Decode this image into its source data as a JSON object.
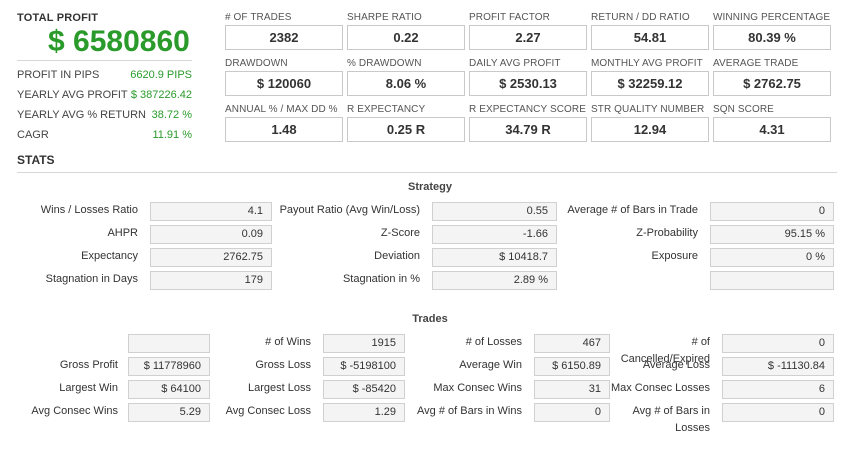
{
  "summary": {
    "total_profit_label": "TOTAL PROFIT",
    "total_profit_value": "$ 6580860",
    "rows": [
      {
        "label": "PROFIT IN PIPS",
        "value": "6620.9 PIPS"
      },
      {
        "label": "YEARLY AVG PROFIT",
        "value": "$ 387226.42"
      },
      {
        "label": "YEARLY AVG % RETURN",
        "value": "38.72 %"
      },
      {
        "label": "CAGR",
        "value": "11.91 %"
      }
    ]
  },
  "kpis": [
    {
      "label": "# OF TRADES",
      "value": "2382"
    },
    {
      "label": "SHARPE RATIO",
      "value": "0.22"
    },
    {
      "label": "PROFIT FACTOR",
      "value": "2.27"
    },
    {
      "label": "RETURN / DD RATIO",
      "value": "54.81"
    },
    {
      "label": "WINNING PERCENTAGE",
      "value": "80.39 %"
    },
    {
      "label": "DRAWDOWN",
      "value": "$ 120060"
    },
    {
      "label": "% DRAWDOWN",
      "value": "8.06 %"
    },
    {
      "label": "DAILY AVG PROFIT",
      "value": "$ 2530.13"
    },
    {
      "label": "MONTHLY AVG PROFIT",
      "value": "$ 32259.12"
    },
    {
      "label": "AVERAGE TRADE",
      "value": "$ 2762.75"
    },
    {
      "label": "ANNUAL % / MAX DD %",
      "value": "1.48"
    },
    {
      "label": "R EXPECTANCY",
      "value": "0.25 R"
    },
    {
      "label": "R EXPECTANCY SCORE",
      "value": "34.79 R"
    },
    {
      "label": "STR QUALITY NUMBER",
      "value": "12.94"
    },
    {
      "label": "SQN SCORE",
      "value": "4.31"
    }
  ],
  "stats": {
    "title": "STATS",
    "strategy": {
      "title": "Strategy",
      "rows": [
        [
          {
            "label": "Wins / Losses Ratio",
            "value": "4.1"
          },
          {
            "label": "Payout Ratio (Avg Win/Loss)",
            "value": "0.55"
          },
          {
            "label": "Average # of Bars in Trade",
            "value": "0"
          }
        ],
        [
          {
            "label": "AHPR",
            "value": "0.09"
          },
          {
            "label": "Z-Score",
            "value": "-1.66"
          },
          {
            "label": "Z-Probability",
            "value": "95.15 %"
          }
        ],
        [
          {
            "label": "Expectancy",
            "value": "2762.75"
          },
          {
            "label": "Deviation",
            "value": "$ 10418.7"
          },
          {
            "label": "Exposure",
            "value": "0 %"
          }
        ],
        [
          {
            "label": "Stagnation in Days",
            "value": "179"
          },
          {
            "label": "Stagnation in %",
            "value": "2.89 %"
          },
          {
            "label": "",
            "value": ""
          }
        ]
      ]
    },
    "trades": {
      "title": "Trades",
      "rows": [
        [
          {
            "label": "",
            "value": ""
          },
          {
            "label": "# of Wins",
            "value": "1915"
          },
          {
            "label": "# of Losses",
            "value": "467"
          },
          {
            "label": "# of Cancelled/Expired",
            "value": "0"
          }
        ],
        [
          {
            "label": "Gross Profit",
            "value": "$ 11778960"
          },
          {
            "label": "Gross Loss",
            "value": "$ -5198100"
          },
          {
            "label": "Average Win",
            "value": "$ 6150.89"
          },
          {
            "label": "Average Loss",
            "value": "$ -11130.84"
          }
        ],
        [
          {
            "label": "Largest Win",
            "value": "$ 64100"
          },
          {
            "label": "Largest Loss",
            "value": "$ -85420"
          },
          {
            "label": "Max Consec Wins",
            "value": "31"
          },
          {
            "label": "Max Consec Losses",
            "value": "6"
          }
        ],
        [
          {
            "label": "Avg Consec Wins",
            "value": "5.29"
          },
          {
            "label": "Avg Consec Loss",
            "value": "1.29"
          },
          {
            "label": "Avg # of Bars in Wins",
            "value": "0"
          },
          {
            "label": "Avg # of Bars in Losses",
            "value": "0"
          }
        ]
      ]
    }
  }
}
